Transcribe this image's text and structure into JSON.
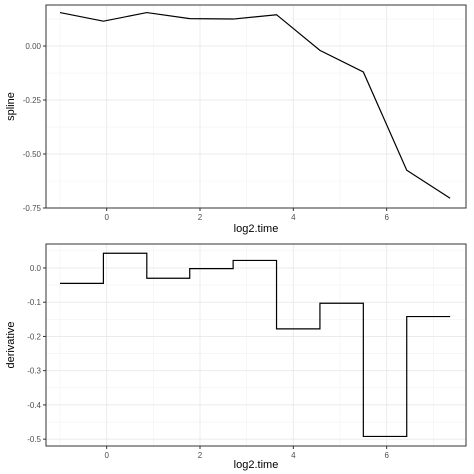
{
  "chart_data": [
    {
      "type": "line",
      "title": "",
      "xlabel": "log2.time",
      "ylabel": "spline",
      "xlim": [
        -1.3,
        7.7
      ],
      "ylim": [
        -0.75,
        0.19
      ],
      "x_ticks": [
        0,
        2,
        4,
        6
      ],
      "x_tick_labels": [
        "0",
        "2",
        "4",
        "6"
      ],
      "y_ticks": [
        0.0,
        -0.25,
        -0.5,
        -0.75
      ],
      "y_tick_labels": [
        "0.00",
        "-0.25",
        "-0.50",
        "-0.75"
      ],
      "grid": true,
      "series": [
        {
          "x": [
            -1.0,
            -0.07,
            0.86,
            1.78,
            2.71,
            3.64,
            4.57,
            5.5,
            6.43,
            7.36
          ],
          "y": [
            0.155,
            0.115,
            0.155,
            0.127,
            0.125,
            0.145,
            -0.02,
            -0.12,
            -0.575,
            -0.705
          ]
        }
      ]
    },
    {
      "type": "line",
      "step": true,
      "title": "",
      "xlabel": "log2.time",
      "ylabel": "derivative",
      "xlim": [
        -1.3,
        7.7
      ],
      "ylim": [
        -0.52,
        0.07
      ],
      "x_ticks": [
        0,
        2,
        4,
        6
      ],
      "x_tick_labels": [
        "0",
        "2",
        "4",
        "6"
      ],
      "y_ticks": [
        0.0,
        -0.1,
        -0.2,
        -0.3,
        -0.4,
        -0.5
      ],
      "y_tick_labels": [
        "0.0",
        "-0.1",
        "-0.2",
        "-0.3",
        "-0.4",
        "-0.5"
      ],
      "grid": true,
      "breaks": [
        -1.0,
        -0.07,
        0.86,
        1.78,
        2.71,
        3.64,
        4.57,
        5.5,
        6.43,
        7.36
      ],
      "step_values": [
        -0.045,
        0.043,
        -0.03,
        -0.002,
        0.022,
        -0.178,
        -0.103,
        -0.492,
        -0.142
      ]
    }
  ]
}
